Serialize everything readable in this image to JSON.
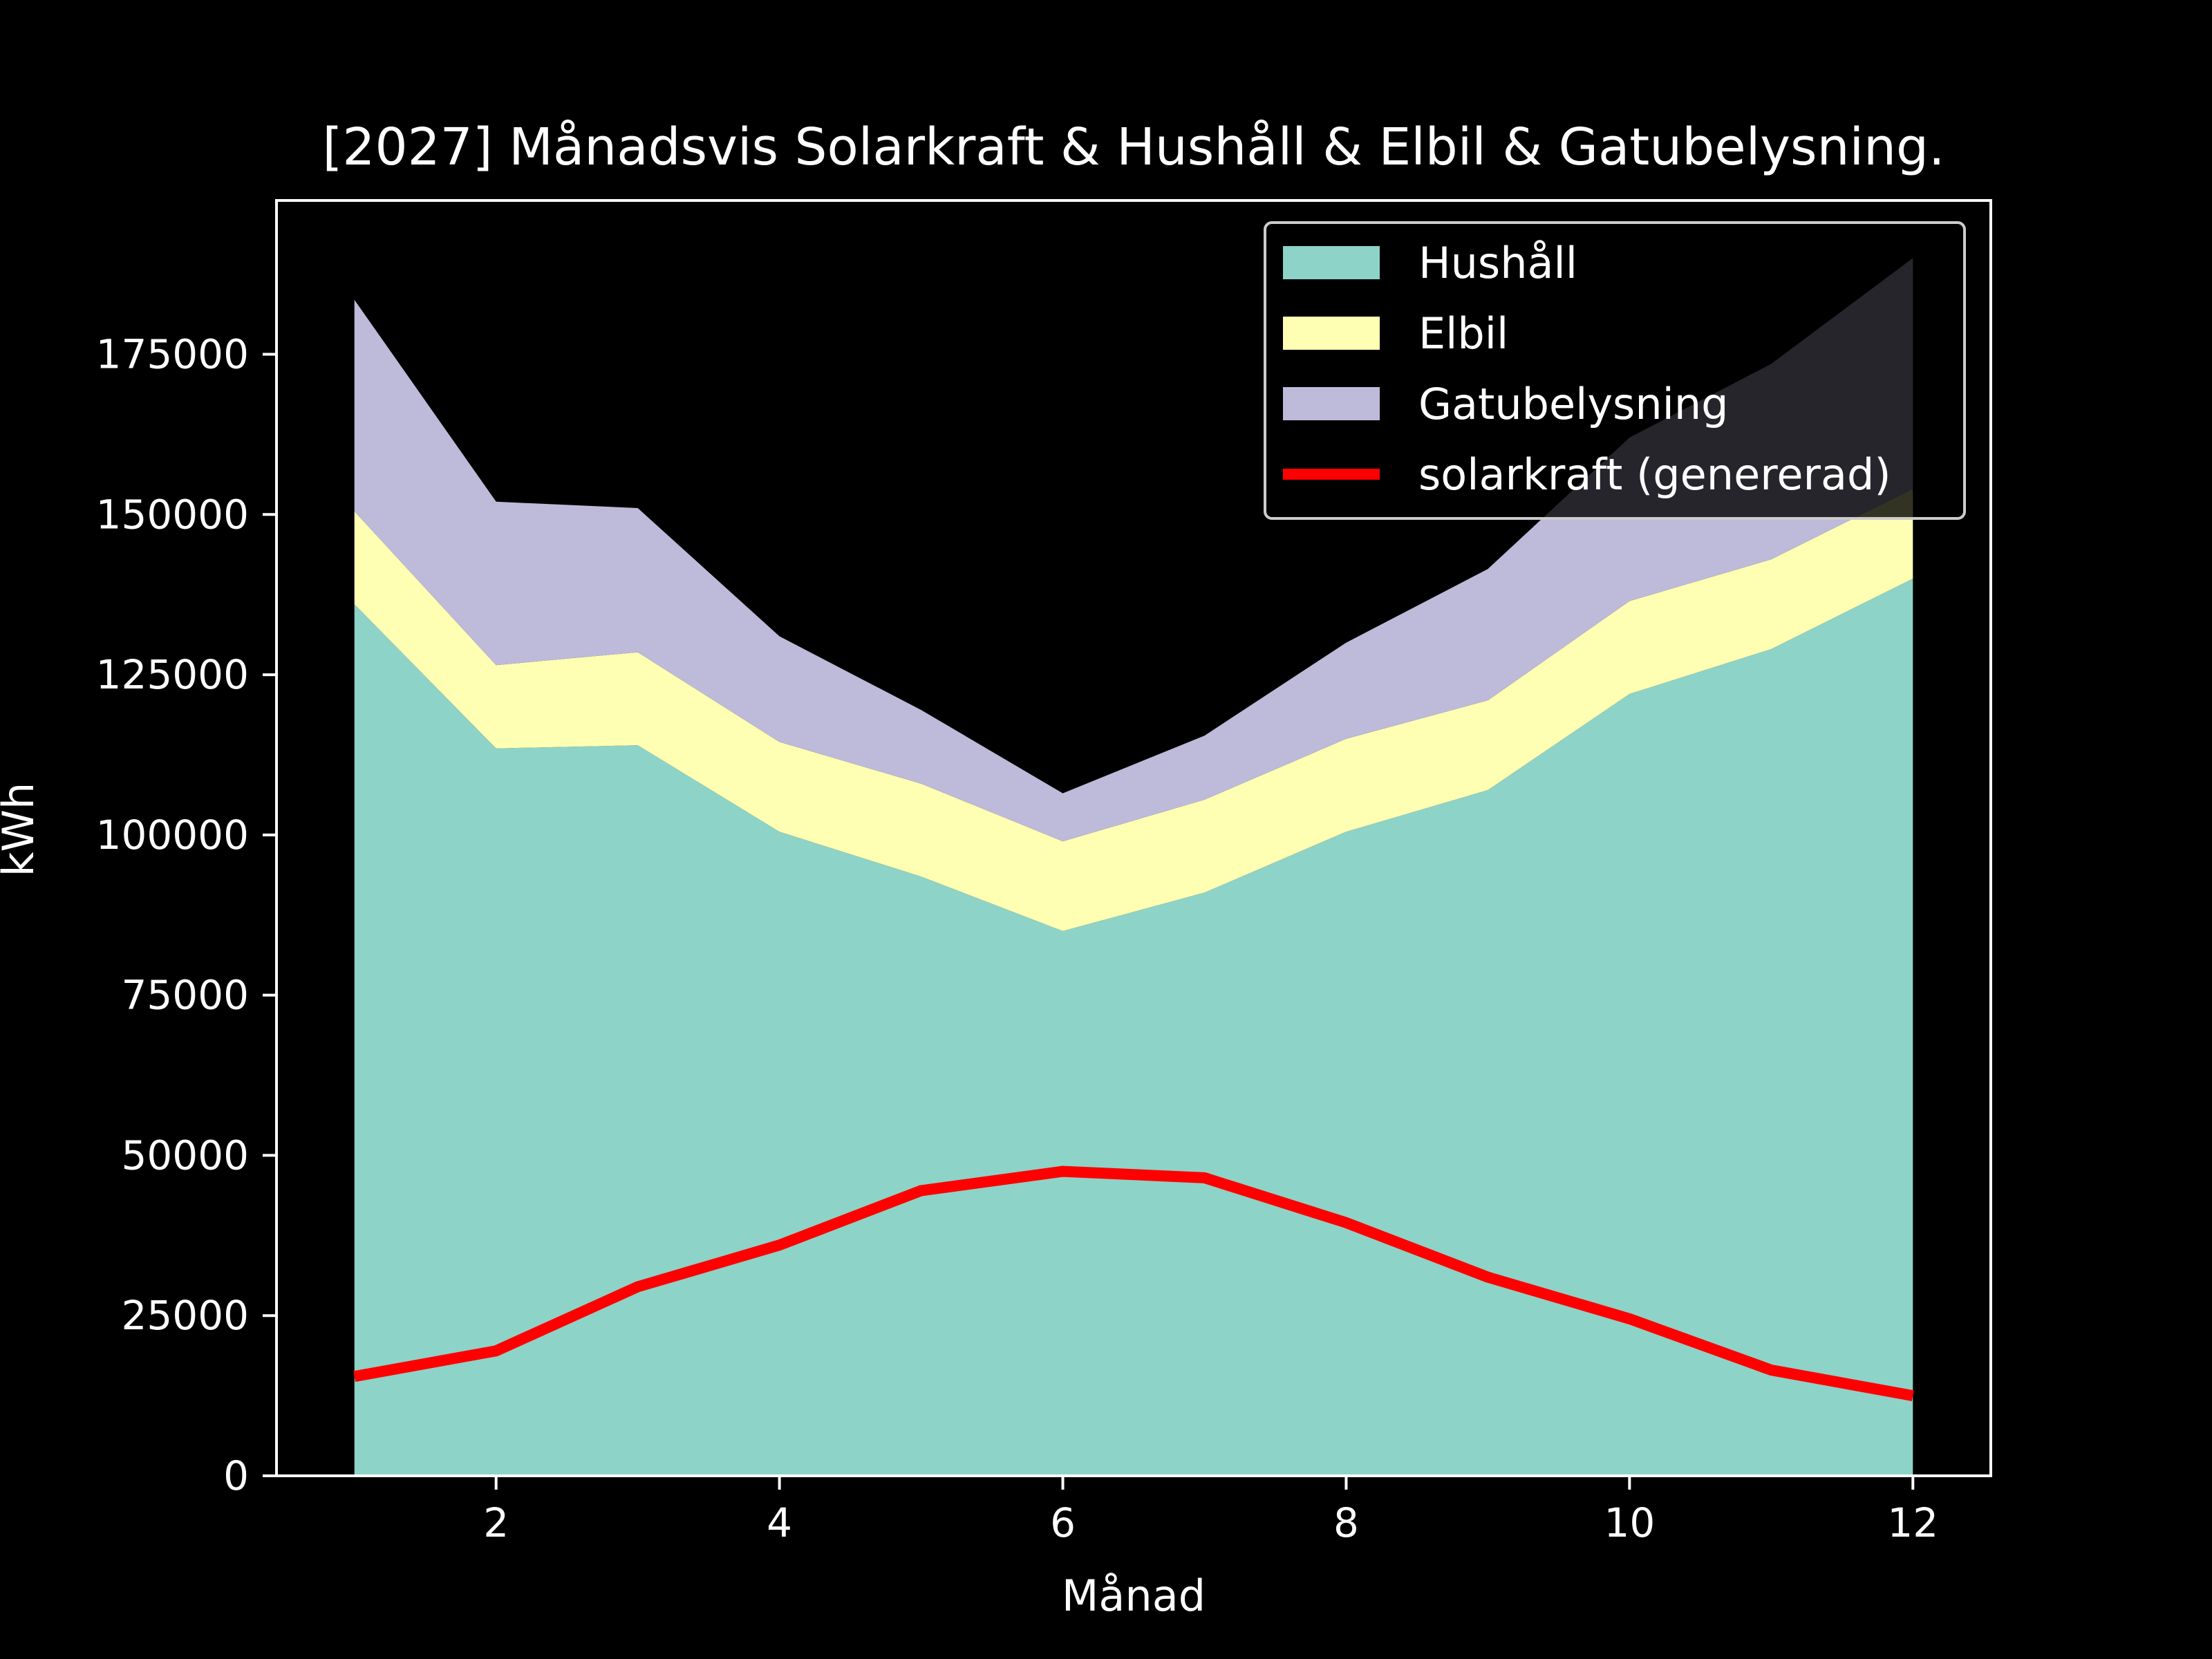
{
  "chart_data": {
    "type": "area",
    "stacked": true,
    "title": "[2027] Månadsvis Solarkraft & Hushåll & Elbil & Gatubelysning.",
    "xlabel": "Månad",
    "ylabel": "kWh",
    "x": [
      1,
      2,
      3,
      4,
      5,
      6,
      7,
      8,
      9,
      10,
      11,
      12
    ],
    "xlim": [
      0.45,
      12.55
    ],
    "ylim": [
      0,
      199000
    ],
    "xticks": [
      2,
      4,
      6,
      8,
      10,
      12
    ],
    "yticks": [
      0,
      25000,
      50000,
      75000,
      100000,
      125000,
      150000,
      175000
    ],
    "grid": false,
    "legend_position": "top-right",
    "series": [
      {
        "name": "Hushåll",
        "kind": "area",
        "color": "#8dd3c7",
        "values": [
          136000,
          113500,
          114000,
          100500,
          93500,
          85000,
          91000,
          100500,
          107000,
          122000,
          129000,
          140000
        ]
      },
      {
        "name": "Elbil",
        "kind": "area",
        "color": "#ffffb3",
        "values": [
          14500,
          13000,
          14500,
          14000,
          14500,
          14000,
          14500,
          14500,
          14000,
          14500,
          14000,
          14000
        ]
      },
      {
        "name": "Gatubelysning",
        "kind": "area",
        "color": "#bebada",
        "values": [
          33000,
          25500,
          22500,
          16500,
          11500,
          7500,
          10000,
          15000,
          20500,
          25500,
          30500,
          36000
        ]
      },
      {
        "name": "solarkraft (genererad)",
        "kind": "line",
        "color": "#ff0000",
        "values": [
          15500,
          19500,
          29500,
          36000,
          44500,
          47500,
          46500,
          39500,
          31000,
          24500,
          16500,
          12500
        ]
      }
    ]
  }
}
